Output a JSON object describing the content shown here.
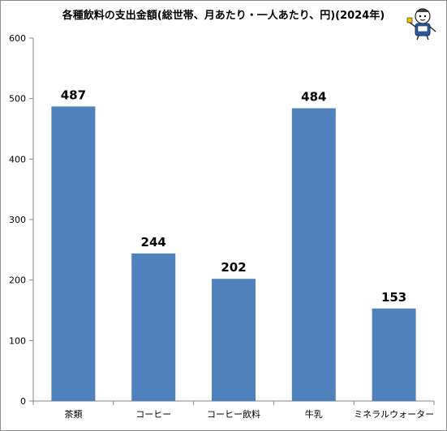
{
  "chart_data": {
    "type": "bar",
    "title": "各種飲料の支出金額(総世帯、月あたり・一人あたり、円)(2024年)",
    "categories": [
      "茶類",
      "コーヒー",
      "コーヒー飲料",
      "牛乳",
      "ミネラルウォーター"
    ],
    "values": [
      487,
      244,
      202,
      484,
      153
    ],
    "ylim": [
      0,
      600
    ],
    "yticks": [
      0,
      100,
      200,
      300,
      400,
      500,
      600
    ],
    "xlabel": "",
    "ylabel": "",
    "grid": false,
    "legend": "none",
    "bar_color": "#4f81bd",
    "data_labels": true
  },
  "decoration": {
    "mascot_icon": "mascot-character-icon"
  }
}
